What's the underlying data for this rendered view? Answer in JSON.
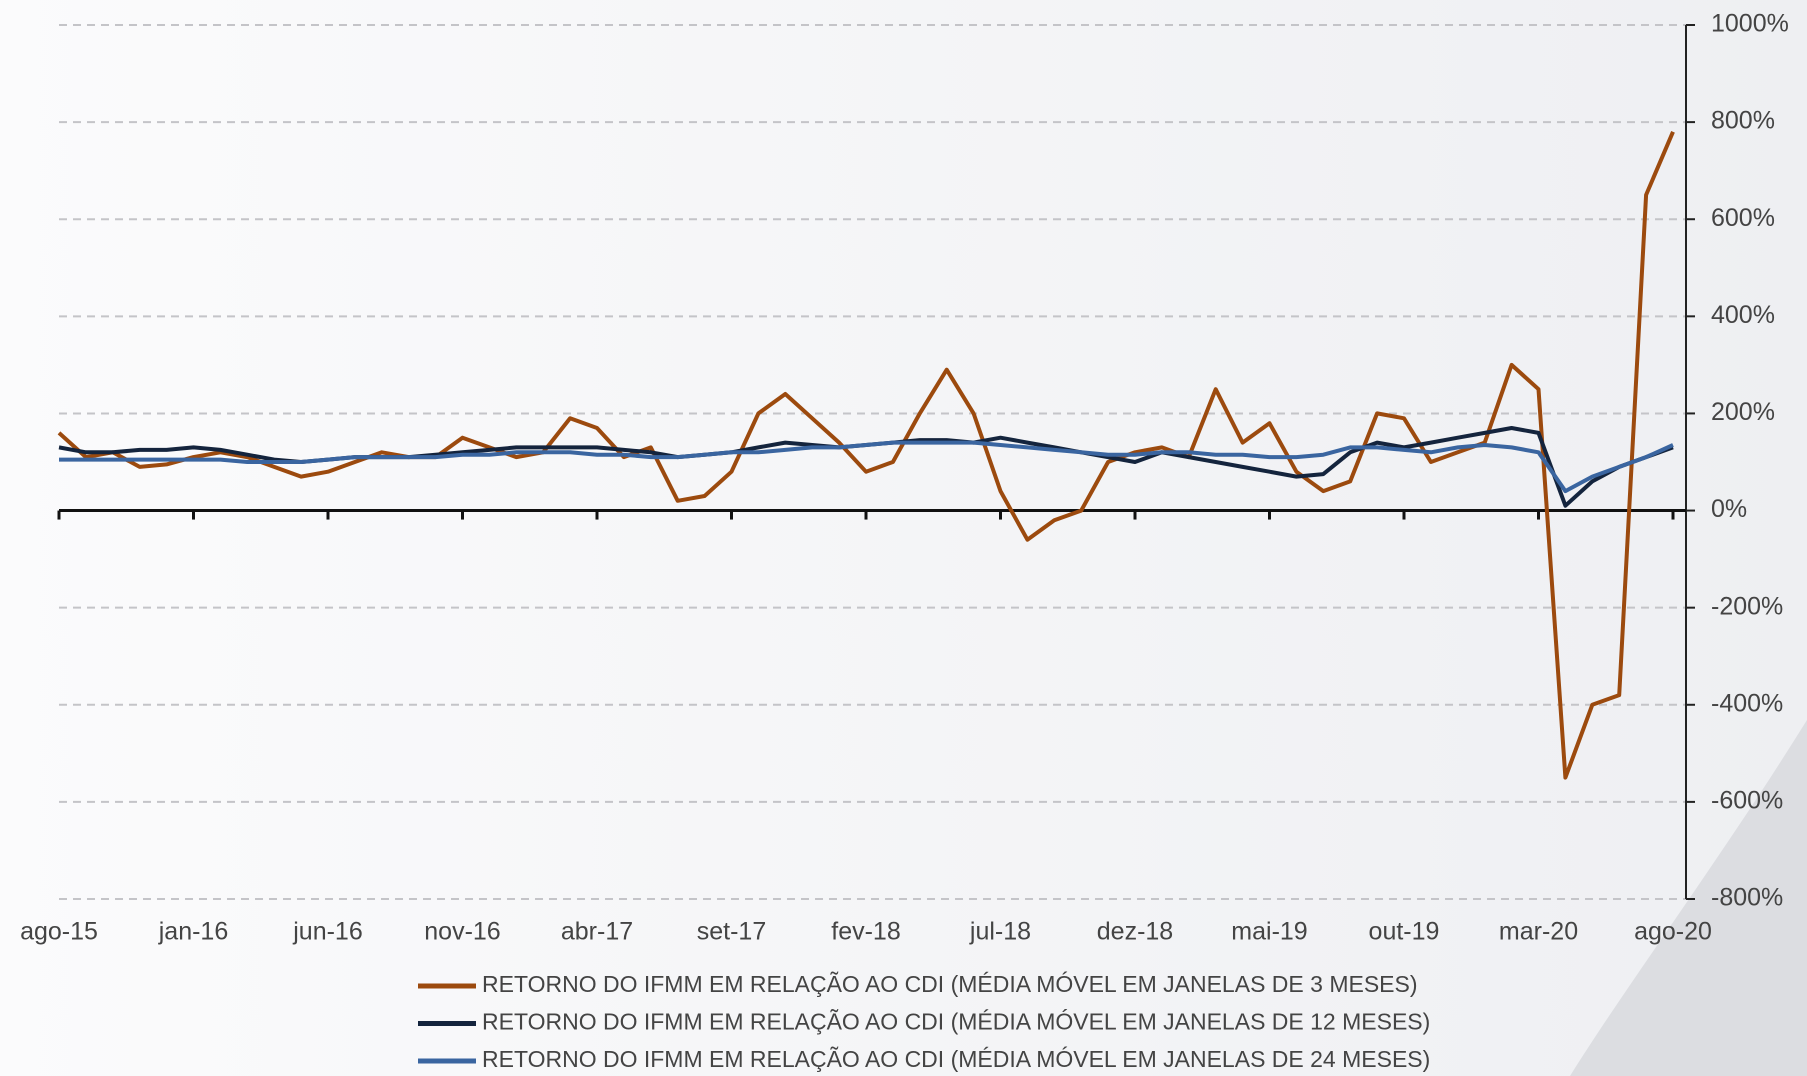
{
  "chart_data": {
    "type": "line",
    "categories": [
      "ago-15",
      null,
      null,
      null,
      null,
      "jan-16",
      null,
      null,
      null,
      null,
      "jun-16",
      null,
      null,
      null,
      null,
      "nov-16",
      null,
      null,
      null,
      null,
      "abr-17",
      null,
      null,
      null,
      null,
      "set-17",
      null,
      null,
      null,
      null,
      "fev-18",
      null,
      null,
      null,
      null,
      "jul-18",
      null,
      null,
      null,
      null,
      "dez-18",
      null,
      null,
      null,
      null,
      "mai-19",
      null,
      null,
      null,
      null,
      "out-19",
      null,
      null,
      null,
      null,
      "mar-20",
      null,
      null,
      null,
      null,
      "ago-20"
    ],
    "series": [
      {
        "name": "RETORNO DO IFMM EM RELAÇÃO AO CDI (MÉDIA MÓVEL EM JANELAS DE 3 MESES)",
        "color": "#9c4a0e",
        "values": [
          160,
          110,
          120,
          90,
          95,
          110,
          120,
          110,
          90,
          70,
          80,
          100,
          120,
          110,
          110,
          150,
          130,
          110,
          120,
          190,
          170,
          110,
          130,
          20,
          30,
          80,
          200,
          240,
          190,
          140,
          80,
          100,
          200,
          290,
          200,
          40,
          -60,
          -20,
          0,
          100,
          120,
          130,
          110,
          250,
          140,
          180,
          80,
          40,
          60,
          200,
          190,
          100,
          120,
          140,
          300,
          250,
          -550,
          -400,
          -380,
          650,
          780
        ]
      },
      {
        "name": "RETORNO DO IFMM EM RELAÇÃO AO CDI (MÉDIA MÓVEL EM JANELAS DE 12 MESES)",
        "color": "#14243d",
        "values": [
          130,
          120,
          120,
          125,
          125,
          130,
          125,
          115,
          105,
          100,
          105,
          110,
          110,
          110,
          115,
          120,
          125,
          130,
          130,
          130,
          130,
          125,
          120,
          110,
          115,
          120,
          130,
          140,
          135,
          130,
          135,
          140,
          145,
          145,
          140,
          150,
          140,
          130,
          120,
          110,
          100,
          120,
          110,
          100,
          90,
          80,
          70,
          75,
          120,
          140,
          130,
          140,
          150,
          160,
          170,
          160,
          10,
          60,
          90,
          110,
          130
        ]
      },
      {
        "name": "RETORNO DO IFMM EM RELAÇÃO AO CDI (MÉDIA MÓVEL EM JANELAS DE 24 MESES)",
        "color": "#3a65a0",
        "values": [
          105,
          105,
          105,
          105,
          105,
          105,
          105,
          100,
          100,
          100,
          105,
          110,
          110,
          110,
          110,
          115,
          115,
          120,
          120,
          120,
          115,
          115,
          110,
          110,
          115,
          120,
          120,
          125,
          130,
          130,
          135,
          140,
          140,
          140,
          140,
          135,
          130,
          125,
          120,
          115,
          115,
          120,
          120,
          115,
          115,
          110,
          110,
          115,
          130,
          130,
          125,
          120,
          130,
          135,
          130,
          120,
          40,
          70,
          90,
          110,
          135
        ]
      }
    ],
    "ylim": [
      -800,
      1000
    ],
    "yticks": [
      {
        "value": -800,
        "label": "-800%"
      },
      {
        "value": -600,
        "label": "-600%"
      },
      {
        "value": -400,
        "label": "-400%"
      },
      {
        "value": -200,
        "label": "-200%"
      },
      {
        "value": 0,
        "label": "0%"
      },
      {
        "value": 200,
        "label": "200%"
      },
      {
        "value": 400,
        "label": "400%"
      },
      {
        "value": 600,
        "label": "600%"
      },
      {
        "value": 800,
        "label": "800%"
      },
      {
        "value": 1000,
        "label": "1000%"
      }
    ],
    "grid": true
  }
}
